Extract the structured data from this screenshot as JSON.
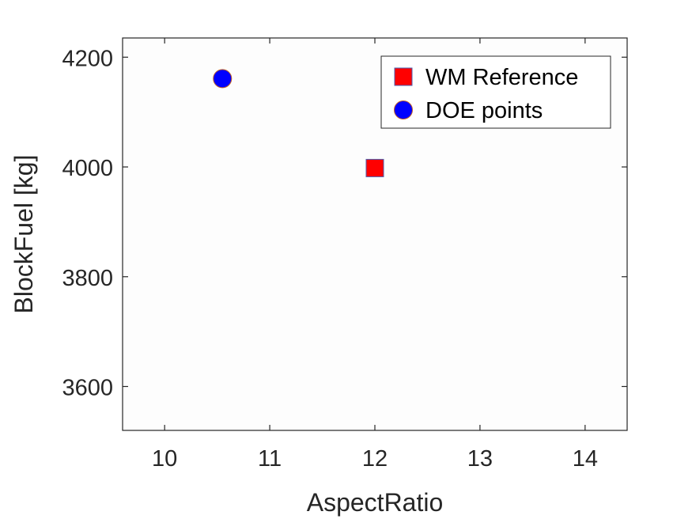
{
  "chart_data": {
    "type": "scatter",
    "xlabel": "AspectRatio",
    "ylabel": "BlockFuel [kg]",
    "xlim": [
      9.6,
      14.4
    ],
    "ylim": [
      3520,
      4235
    ],
    "xticks": [
      10,
      11,
      12,
      13,
      14
    ],
    "yticks": [
      3600,
      3800,
      4000,
      4200
    ],
    "xtick_labels": [
      "10",
      "11",
      "12",
      "13",
      "14"
    ],
    "ytick_labels": [
      "3600",
      "3800",
      "4000",
      "4200"
    ],
    "grid": false,
    "legend": "top-right",
    "series": [
      {
        "name": "WM Reference",
        "marker": "square",
        "color": "#ff0000",
        "edge_color": "#4a5fb0",
        "points": [
          {
            "x": 12.0,
            "y": 3998
          }
        ]
      },
      {
        "name": "DOE points",
        "marker": "circle",
        "color": "#0000ff",
        "edge_color": "#c0602a",
        "points": [
          {
            "x": 10.55,
            "y": 4161
          }
        ]
      }
    ]
  }
}
